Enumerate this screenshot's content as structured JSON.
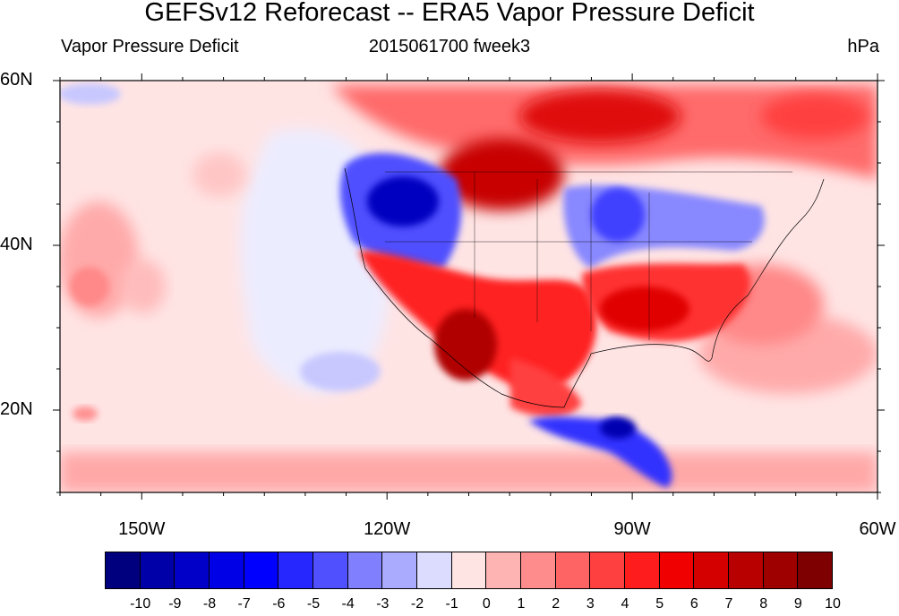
{
  "title": "GEFSv12 Reforecast -- ERA5 Vapor Pressure Deficit",
  "subtitle_left": "Vapor Pressure Deficit",
  "subtitle_center": "2015061700 fweek3",
  "subtitle_right": "hPa",
  "map": {
    "lon_range": [
      -160,
      -60
    ],
    "lat_range": [
      10,
      60
    ],
    "lat_ticks": [
      {
        "value": 60,
        "label": "60N"
      },
      {
        "value": 40,
        "label": "40N"
      },
      {
        "value": 20,
        "label": "20N"
      }
    ],
    "lon_ticks": [
      {
        "value": -150,
        "label": "150W"
      },
      {
        "value": -120,
        "label": "120W"
      },
      {
        "value": -90,
        "label": "90W"
      },
      {
        "value": -60,
        "label": "60W"
      }
    ],
    "background_color": "#ffe4e4"
  },
  "colorbar": {
    "labels": [
      "-10",
      "-9",
      "-8",
      "-7",
      "-6",
      "-5",
      "-4",
      "-3",
      "-2",
      "-1",
      "0",
      "1",
      "2",
      "3",
      "4",
      "5",
      "6",
      "7",
      "8",
      "9",
      "10"
    ],
    "colors": [
      "#00007f",
      "#0000a8",
      "#0000c8",
      "#0000e6",
      "#0000ff",
      "#2626ff",
      "#5050ff",
      "#8080ff",
      "#aaaaff",
      "#dcdcff",
      "#ffe4e4",
      "#ffb4b4",
      "#ff8c8c",
      "#ff6464",
      "#ff4040",
      "#ff1c1c",
      "#f00000",
      "#d40000",
      "#b80000",
      "#9e0000",
      "#7f0000"
    ]
  }
}
